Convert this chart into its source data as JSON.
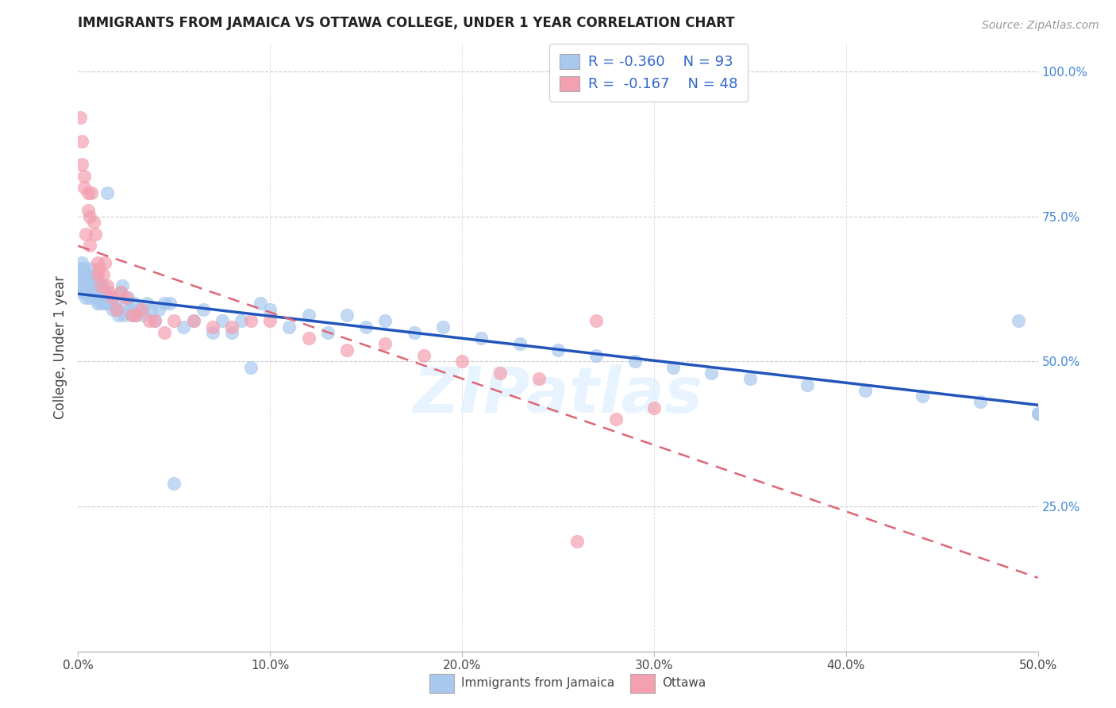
{
  "title": "IMMIGRANTS FROM JAMAICA VS OTTAWA COLLEGE, UNDER 1 YEAR CORRELATION CHART",
  "source": "Source: ZipAtlas.com",
  "ylabel": "College, Under 1 year",
  "xmin": 0.0,
  "xmax": 0.5,
  "ymin": 0.0,
  "ymax": 1.05,
  "xticks": [
    0.0,
    0.1,
    0.2,
    0.3,
    0.4,
    0.5
  ],
  "xticklabels": [
    "0.0%",
    "10.0%",
    "20.0%",
    "30.0%",
    "40.0%",
    "50.0%"
  ],
  "yticks_right": [
    0.25,
    0.5,
    0.75,
    1.0
  ],
  "yticklabels_right": [
    "25.0%",
    "50.0%",
    "75.0%",
    "100.0%"
  ],
  "legend_labels": [
    "Immigrants from Jamaica",
    "Ottawa"
  ],
  "blue_color": "#A8C8EE",
  "pink_color": "#F4A0B0",
  "blue_line_color": "#2255BB",
  "pink_line_color": "#DD6677",
  "watermark": "ZIPatlas",
  "blue_scatter_x": [
    0.001,
    0.001,
    0.001,
    0.002,
    0.002,
    0.002,
    0.003,
    0.003,
    0.003,
    0.004,
    0.004,
    0.004,
    0.005,
    0.005,
    0.005,
    0.006,
    0.006,
    0.007,
    0.007,
    0.007,
    0.008,
    0.008,
    0.009,
    0.009,
    0.01,
    0.01,
    0.01,
    0.011,
    0.011,
    0.012,
    0.012,
    0.013,
    0.013,
    0.014,
    0.014,
    0.015,
    0.016,
    0.017,
    0.018,
    0.019,
    0.02,
    0.021,
    0.022,
    0.023,
    0.024,
    0.025,
    0.026,
    0.027,
    0.028,
    0.029,
    0.03,
    0.032,
    0.034,
    0.036,
    0.038,
    0.04,
    0.042,
    0.045,
    0.048,
    0.05,
    0.055,
    0.06,
    0.065,
    0.07,
    0.075,
    0.08,
    0.085,
    0.09,
    0.095,
    0.1,
    0.11,
    0.12,
    0.13,
    0.14,
    0.15,
    0.16,
    0.175,
    0.19,
    0.21,
    0.23,
    0.25,
    0.27,
    0.29,
    0.31,
    0.33,
    0.35,
    0.38,
    0.41,
    0.44,
    0.47,
    0.49,
    0.5,
    0.5
  ],
  "blue_scatter_y": [
    0.62,
    0.64,
    0.66,
    0.63,
    0.65,
    0.67,
    0.62,
    0.64,
    0.66,
    0.61,
    0.63,
    0.65,
    0.62,
    0.63,
    0.65,
    0.61,
    0.64,
    0.62,
    0.63,
    0.66,
    0.62,
    0.64,
    0.61,
    0.63,
    0.6,
    0.62,
    0.64,
    0.61,
    0.63,
    0.6,
    0.62,
    0.61,
    0.63,
    0.6,
    0.62,
    0.79,
    0.6,
    0.61,
    0.59,
    0.6,
    0.59,
    0.58,
    0.62,
    0.63,
    0.58,
    0.6,
    0.61,
    0.59,
    0.58,
    0.6,
    0.58,
    0.59,
    0.58,
    0.6,
    0.59,
    0.57,
    0.59,
    0.6,
    0.6,
    0.29,
    0.56,
    0.57,
    0.59,
    0.55,
    0.57,
    0.55,
    0.57,
    0.49,
    0.6,
    0.59,
    0.56,
    0.58,
    0.55,
    0.58,
    0.56,
    0.57,
    0.55,
    0.56,
    0.54,
    0.53,
    0.52,
    0.51,
    0.5,
    0.49,
    0.48,
    0.47,
    0.46,
    0.45,
    0.44,
    0.43,
    0.57,
    0.41,
    0.41
  ],
  "pink_scatter_x": [
    0.001,
    0.002,
    0.002,
    0.003,
    0.003,
    0.004,
    0.005,
    0.005,
    0.006,
    0.006,
    0.007,
    0.008,
    0.009,
    0.01,
    0.01,
    0.011,
    0.012,
    0.013,
    0.014,
    0.015,
    0.016,
    0.018,
    0.02,
    0.022,
    0.025,
    0.028,
    0.03,
    0.033,
    0.037,
    0.04,
    0.045,
    0.05,
    0.06,
    0.07,
    0.08,
    0.09,
    0.1,
    0.12,
    0.14,
    0.16,
    0.18,
    0.2,
    0.22,
    0.24,
    0.26,
    0.27,
    0.28,
    0.3
  ],
  "pink_scatter_y": [
    0.92,
    0.88,
    0.84,
    0.8,
    0.82,
    0.72,
    0.79,
    0.76,
    0.75,
    0.7,
    0.79,
    0.74,
    0.72,
    0.67,
    0.65,
    0.66,
    0.63,
    0.65,
    0.67,
    0.63,
    0.62,
    0.61,
    0.59,
    0.62,
    0.61,
    0.58,
    0.58,
    0.59,
    0.57,
    0.57,
    0.55,
    0.57,
    0.57,
    0.56,
    0.56,
    0.57,
    0.57,
    0.54,
    0.52,
    0.53,
    0.51,
    0.5,
    0.48,
    0.47,
    0.19,
    0.57,
    0.4,
    0.42
  ]
}
